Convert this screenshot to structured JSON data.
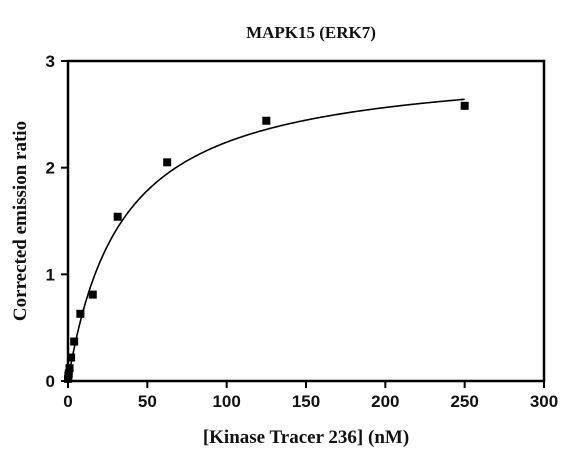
{
  "chart_data": {
    "type": "scatter",
    "title": "MAPK15 (ERK7)",
    "xlabel": "[Kinase Tracer 236] (nM)",
    "ylabel": "Corrected emission ratio",
    "xlim": [
      0,
      300
    ],
    "ylim": [
      0,
      3
    ],
    "xticks": [
      0,
      50,
      100,
      150,
      200,
      250,
      300
    ],
    "yticks": [
      0,
      1,
      2,
      3
    ],
    "grid": false,
    "legend": "none",
    "points": [
      {
        "x": 0,
        "y": 0.02
      },
      {
        "x": 0.24,
        "y": 0.05
      },
      {
        "x": 0.49,
        "y": 0.07
      },
      {
        "x": 0.98,
        "y": 0.12
      },
      {
        "x": 1.95,
        "y": 0.22
      },
      {
        "x": 3.9,
        "y": 0.37
      },
      {
        "x": 7.8,
        "y": 0.63
      },
      {
        "x": 15.6,
        "y": 0.81
      },
      {
        "x": 31.3,
        "y": 1.54
      },
      {
        "x": 62.5,
        "y": 2.05
      },
      {
        "x": 125,
        "y": 2.44
      },
      {
        "x": 250,
        "y": 2.58
      }
    ],
    "fit": {
      "model": "one-site specific binding",
      "bmax": 3.0,
      "kd": 34,
      "x_range": [
        0,
        250
      ]
    },
    "colors": {
      "marker": "#000000",
      "line": "#000000",
      "axis": "#000000"
    }
  }
}
